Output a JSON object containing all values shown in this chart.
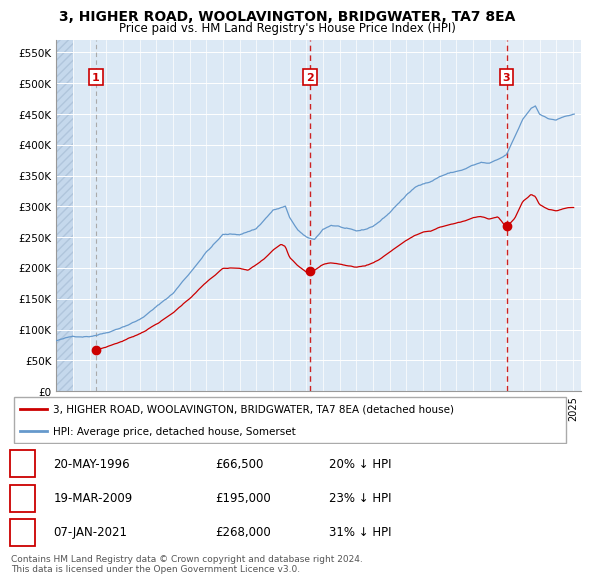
{
  "title": "3, HIGHER ROAD, WOOLAVINGTON, BRIDGWATER, TA7 8EA",
  "subtitle": "Price paid vs. HM Land Registry's House Price Index (HPI)",
  "ylim": [
    0,
    570000
  ],
  "yticks": [
    0,
    50000,
    100000,
    150000,
    200000,
    250000,
    300000,
    350000,
    400000,
    450000,
    500000,
    550000
  ],
  "ytick_labels": [
    "£0",
    "£50K",
    "£100K",
    "£150K",
    "£200K",
    "£250K",
    "£300K",
    "£350K",
    "£400K",
    "£450K",
    "£500K",
    "£550K"
  ],
  "xlim_start": 1994.0,
  "xlim_end": 2025.5,
  "background_color": "#dce9f5",
  "sale_dates": [
    1996.38,
    2009.22,
    2021.02
  ],
  "sale_prices": [
    66500,
    195000,
    268000
  ],
  "sale_labels": [
    "1",
    "2",
    "3"
  ],
  "red_line_color": "#cc0000",
  "blue_line_color": "#6699cc",
  "sale_dot_color": "#cc0000",
  "legend_label_red": "3, HIGHER ROAD, WOOLAVINGTON, BRIDGWATER, TA7 8EA (detached house)",
  "legend_label_blue": "HPI: Average price, detached house, Somerset",
  "table_data": [
    [
      "1",
      "20-MAY-1996",
      "£66,500",
      "20% ↓ HPI"
    ],
    [
      "2",
      "19-MAR-2009",
      "£195,000",
      "23% ↓ HPI"
    ],
    [
      "3",
      "07-JAN-2021",
      "£268,000",
      "31% ↓ HPI"
    ]
  ],
  "footer_text": "Contains HM Land Registry data © Crown copyright and database right 2024.\nThis data is licensed under the Open Government Licence v3.0."
}
